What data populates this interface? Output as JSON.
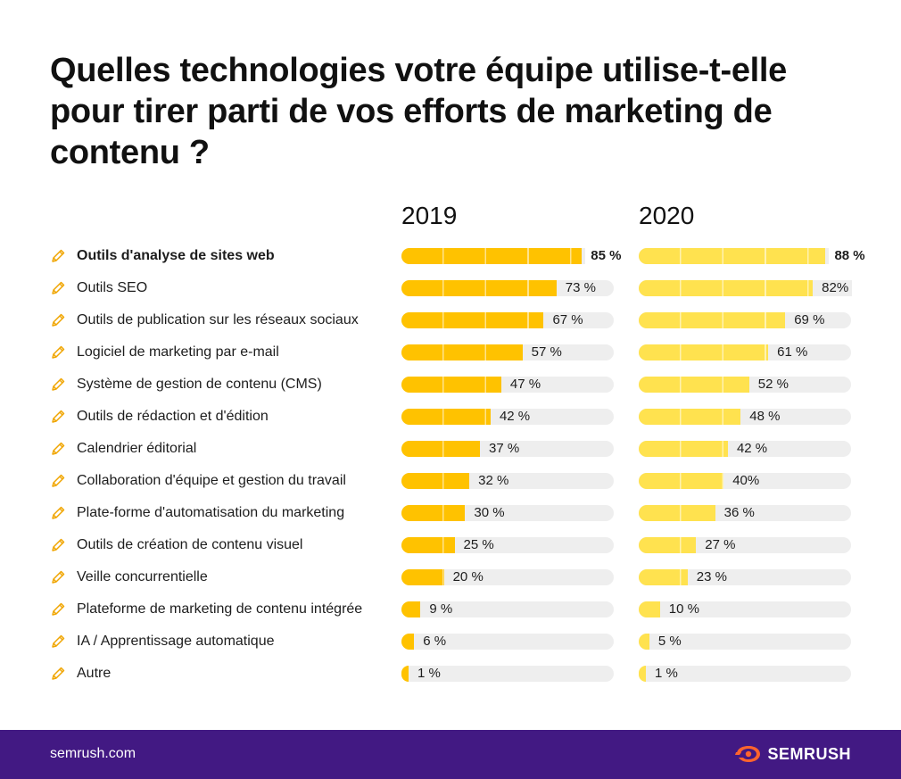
{
  "title": "Quelles technologies votre équipe utilise-t-elle pour tirer parti de vos efforts de marketing de contenu ?",
  "footer": {
    "url": "semrush.com",
    "brand": "SEMRUSH"
  },
  "colors": {
    "bar_2019": "#ffc200",
    "bar_2020": "#ffe24f",
    "track": "#eeeeee",
    "icon": "#f0a500",
    "footer_bg": "#421983",
    "logo": "#ff642d"
  },
  "icons": {
    "row": "pencil-icon",
    "logo": "semrush-fire-icon"
  },
  "chart_data": {
    "type": "bar",
    "orientation": "horizontal",
    "series": [
      {
        "name": "2019",
        "values": [
          85,
          73,
          67,
          57,
          47,
          42,
          37,
          32,
          30,
          25,
          20,
          9,
          6,
          1
        ],
        "labels": [
          "85 %",
          "73 %",
          "67 %",
          "57 %",
          "47 %",
          "42 %",
          "37 %",
          "32 %",
          "30 %",
          "25 %",
          "20 %",
          "9 %",
          "6 %",
          "1 %"
        ]
      },
      {
        "name": "2020",
        "values": [
          88,
          82,
          69,
          61,
          52,
          48,
          42,
          40,
          36,
          27,
          23,
          10,
          5,
          1
        ],
        "labels": [
          "88 %",
          "82%",
          "69 %",
          "61 %",
          "52 %",
          "48 %",
          "42 %",
          "40%",
          "36 %",
          "27 %",
          "23 %",
          "10 %",
          "5 %",
          "1 %"
        ]
      }
    ],
    "categories": [
      "Outils d'analyse de sites web",
      "Outils SEO",
      "Outils de publication sur les réseaux sociaux",
      "Logiciel de marketing par e-mail",
      "Système de gestion de contenu (CMS)",
      "Outils de rédaction et d'édition",
      "Calendrier éditorial",
      "Collaboration d'équipe et gestion du travail",
      "Plate-forme d'automatisation du marketing",
      "Outils de création de contenu visuel",
      "Veille concurrentielle",
      "Plateforme de marketing de contenu intégrée",
      "IA / Apprentissage automatique",
      "Autre"
    ],
    "xlim": [
      0,
      100
    ],
    "title": "Quelles technologies votre équipe utilise-t-elle pour tirer parti de vos efforts de marketing de contenu ?",
    "grid": false
  }
}
